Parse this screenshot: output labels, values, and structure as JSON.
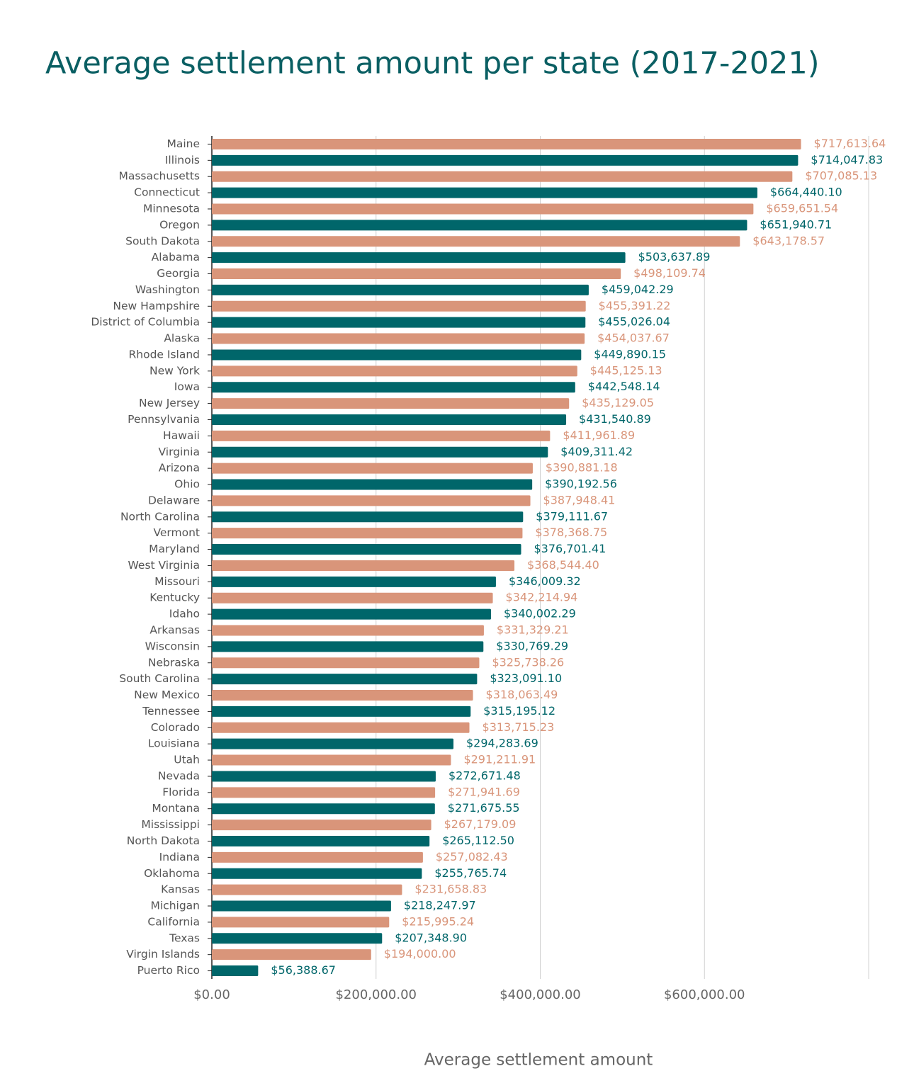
{
  "chart_data": {
    "type": "hbar",
    "title": "Average settlement amount per state (2017-2021)",
    "x_label": "Average settlement amount",
    "colors": [
      "#d9957a",
      "#00666a"
    ],
    "categories": [
      "Maine",
      "Illinois",
      "Massachusetts",
      "Connecticut",
      "Minnesota",
      "Oregon",
      "South Dakota",
      "Alabama",
      "Georgia",
      "Washington",
      "New Hampshire",
      "District of Columbia",
      "Alaska",
      "Rhode Island",
      "New York",
      "Iowa",
      "New Jersey",
      "Pennsylvania",
      "Hawaii",
      "Virginia",
      "Arizona",
      "Ohio",
      "Delaware",
      "North Carolina",
      "Vermont",
      "Maryland",
      "West Virginia",
      "Missouri",
      "Kentucky",
      "Idaho",
      "Arkansas",
      "Wisconsin",
      "Nebraska",
      "South Carolina",
      "New Mexico",
      "Tennessee",
      "Colorado",
      "Louisiana",
      "Utah",
      "Nevada",
      "Florida",
      "Montana",
      "Mississippi",
      "North Dakota",
      "Indiana",
      "Oklahoma",
      "Kansas",
      "Michigan",
      "California",
      "Texas",
      "Virgin Islands",
      "Puerto Rico"
    ],
    "values": [
      717613.64,
      714047.83,
      707085.13,
      664440.1,
      659651.54,
      651940.71,
      643178.57,
      503637.89,
      498109.74,
      459042.29,
      455391.22,
      455026.04,
      454037.67,
      449890.15,
      445125.13,
      442548.14,
      435129.05,
      431540.89,
      411961.89,
      409311.42,
      390881.18,
      390192.56,
      387948.41,
      379111.67,
      378368.75,
      376701.41,
      368544.4,
      346009.32,
      342214.94,
      340002.29,
      331329.21,
      330769.29,
      325738.26,
      323091.1,
      318063.49,
      315195.12,
      313715.23,
      294283.69,
      291211.91,
      272671.48,
      271941.69,
      271675.55,
      267179.09,
      265112.5,
      257082.43,
      255765.74,
      231658.83,
      218247.97,
      215995.24,
      207348.9,
      194000.0,
      56388.67
    ],
    "value_labels": [
      "$717,613.64",
      "$714,047.83",
      "$707,085.13",
      "$664,440.10",
      "$659,651.54",
      "$651,940.71",
      "$643,178.57",
      "$503,637.89",
      "$498,109.74",
      "$459,042.29",
      "$455,391.22",
      "$455,026.04",
      "$454,037.67",
      "$449,890.15",
      "$445,125.13",
      "$442,548.14",
      "$435,129.05",
      "$431,540.89",
      "$411,961.89",
      "$409,311.42",
      "$390,881.18",
      "$390,192.56",
      "$387,948.41",
      "$379,111.67",
      "$378,368.75",
      "$376,701.41",
      "$368,544.40",
      "$346,009.32",
      "$342,214.94",
      "$340,002.29",
      "$331,329.21",
      "$330,769.29",
      "$325,738.26",
      "$323,091.10",
      "$318,063.49",
      "$315,195.12",
      "$313,715.23",
      "$294,283.69",
      "$291,211.91",
      "$272,671.48",
      "$271,941.69",
      "$271,675.55",
      "$267,179.09",
      "$265,112.50",
      "$257,082.43",
      "$255,765.74",
      "$231,658.83",
      "$218,247.97",
      "$215,995.24",
      "$207,348.90",
      "$194,000.00",
      "$56,388.67"
    ],
    "xlim": [
      0,
      800000
    ],
    "xticks": [
      {
        "value": 0,
        "label": "$0.00"
      },
      {
        "value": 200000,
        "label": "$200,000.00"
      },
      {
        "value": 400000,
        "label": "$400,000.00"
      },
      {
        "value": 600000,
        "label": "$600,000.00"
      }
    ],
    "grid": true
  }
}
